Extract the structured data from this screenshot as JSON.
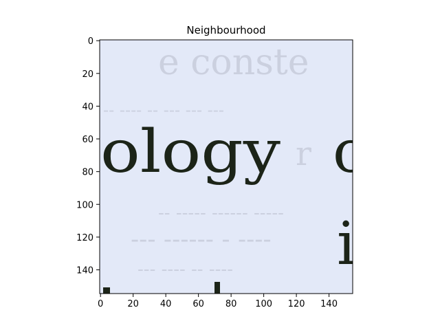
{
  "chart_data": {
    "type": "image",
    "title": "Neighbourhood",
    "xlabel": "",
    "ylabel": "",
    "xlim": [
      -0.5,
      154.5
    ],
    "ylim": [
      154.5,
      -0.5
    ],
    "xticks": [
      0,
      20,
      40,
      60,
      80,
      100,
      120,
      140
    ],
    "yticks": [
      0,
      20,
      40,
      60,
      80,
      100,
      120,
      140
    ],
    "image": {
      "width": 155,
      "height": 155,
      "background_color": "#e3e9f8",
      "ink_color": "#1c2418",
      "faint_ink_color": "#b9bccb",
      "content": "cropped scanned page showing the word fragment 'ology' followed by a partial 'c' at the right edge, with faint bleed-through text from the reverse side"
    },
    "grid": false
  }
}
